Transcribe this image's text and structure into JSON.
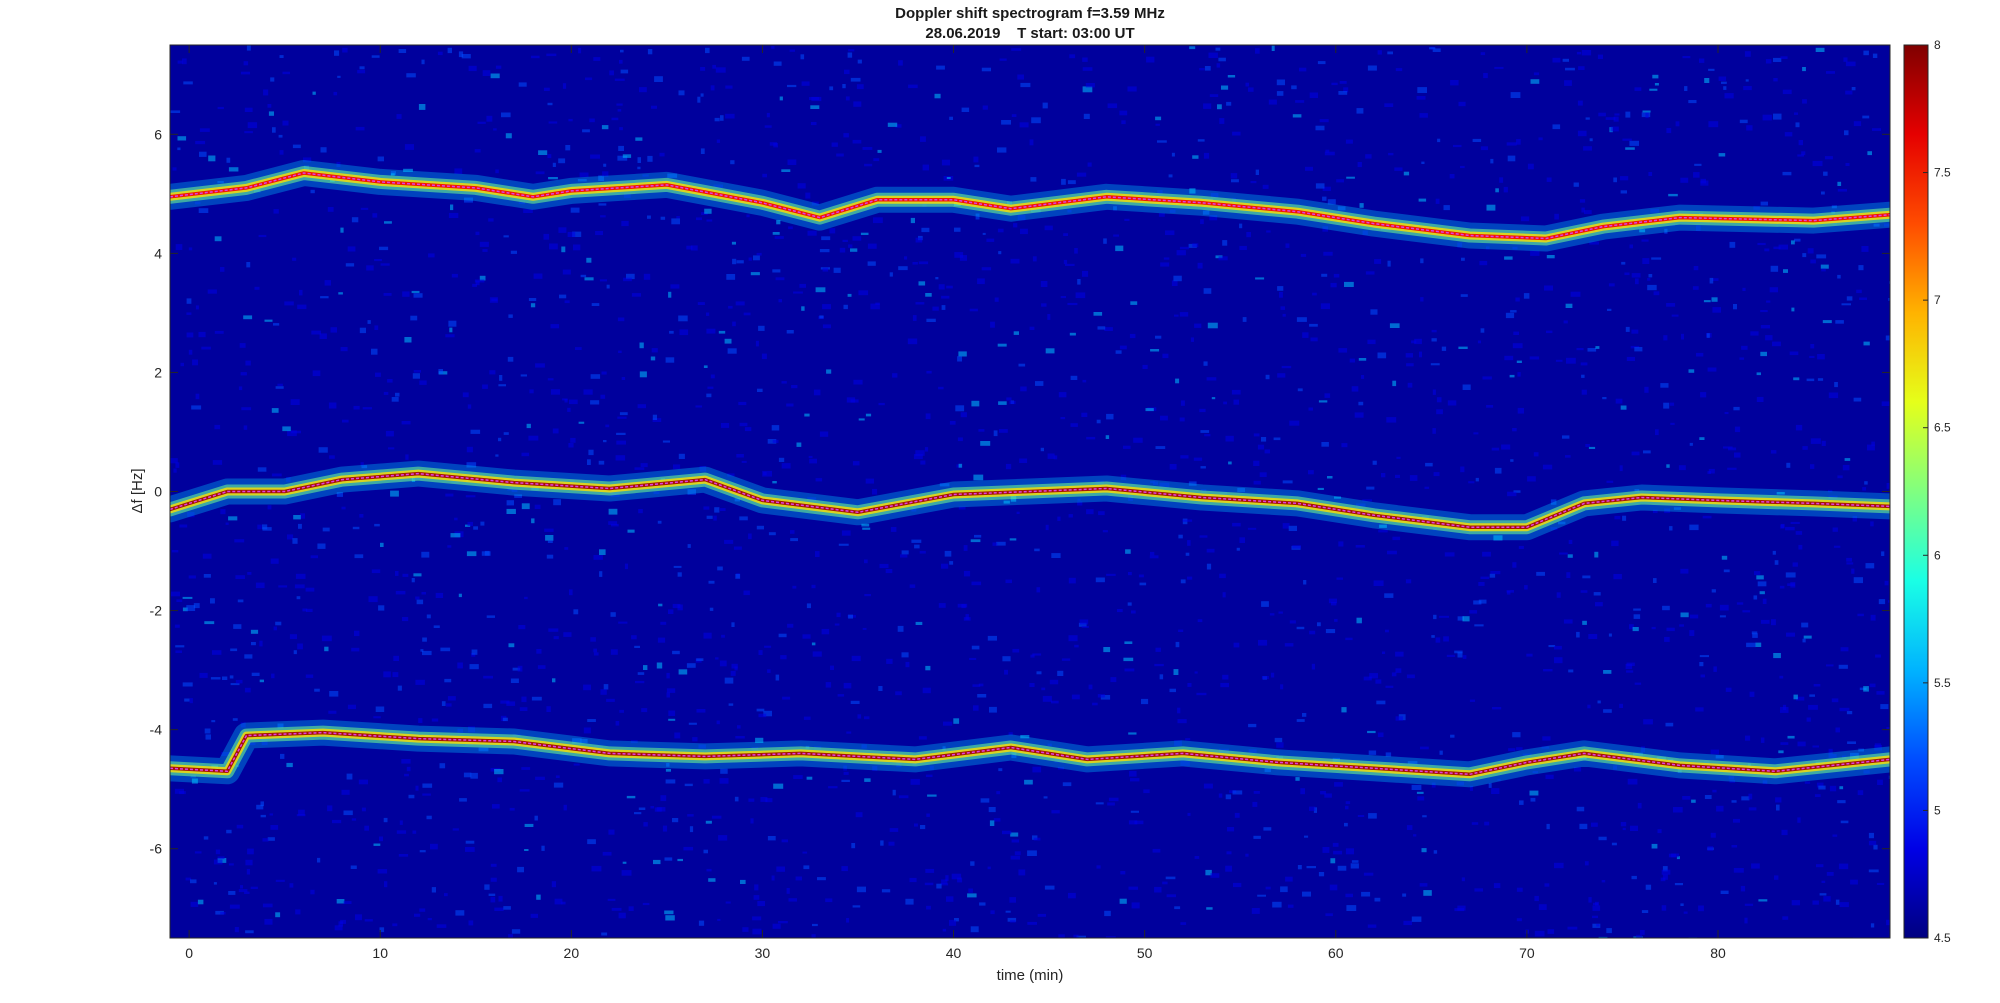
{
  "chart_data": {
    "type": "heatmap",
    "title": "Doppler shift spectrogram f=3.59 MHz",
    "subtitle": "28.06.2019    T start: 03:00 UT",
    "xlabel": "time (min)",
    "ylabel": "Δf [Hz]",
    "xlim": [
      -1,
      89
    ],
    "ylim": [
      -7.5,
      7.5
    ],
    "x_ticks": [
      0,
      10,
      20,
      30,
      40,
      50,
      60,
      70,
      80
    ],
    "y_ticks": [
      -6,
      -4,
      -2,
      0,
      2,
      4,
      6
    ],
    "colormap": "jet",
    "colorbar": {
      "range": [
        4.5,
        8
      ],
      "ticks": [
        4.5,
        5,
        5.5,
        6,
        6.5,
        7,
        7.5,
        8
      ],
      "position": "right"
    },
    "background_level": 4.6,
    "traces": [
      {
        "name": "",
        "time": [
          -1,
          3,
          6,
          10,
          15,
          18,
          20,
          25,
          30,
          33,
          36,
          40,
          43,
          48,
          53,
          58,
          62,
          67,
          71,
          74,
          78,
          85,
          89
        ],
        "doppler_hz": [
          4.95,
          5.1,
          5.35,
          5.2,
          5.1,
          4.95,
          5.05,
          5.15,
          4.85,
          4.6,
          4.9,
          4.9,
          4.75,
          4.95,
          4.85,
          4.7,
          4.5,
          4.3,
          4.25,
          4.45,
          4.6,
          4.55,
          4.65
        ],
        "intensity_peak": 7.6
      },
      {
        "name": "",
        "time": [
          -1,
          2,
          5,
          8,
          12,
          17,
          22,
          27,
          30,
          35,
          40,
          44,
          48,
          53,
          58,
          62,
          67,
          70,
          73,
          76,
          80,
          85,
          89
        ],
        "doppler_hz": [
          -0.3,
          0.0,
          0.0,
          0.2,
          0.3,
          0.15,
          0.05,
          0.2,
          -0.15,
          -0.35,
          -0.05,
          0.0,
          0.05,
          -0.1,
          -0.2,
          -0.4,
          -0.6,
          -0.6,
          -0.2,
          -0.1,
          -0.15,
          -0.2,
          -0.25
        ],
        "intensity_peak": 7.9
      },
      {
        "name": "",
        "time": [
          -1,
          2,
          3,
          7,
          12,
          17,
          22,
          27,
          32,
          38,
          43,
          47,
          52,
          57,
          62,
          67,
          70,
          73,
          78,
          83,
          89
        ],
        "doppler_hz": [
          -4.65,
          -4.7,
          -4.1,
          -4.05,
          -4.15,
          -4.2,
          -4.4,
          -4.45,
          -4.4,
          -4.5,
          -4.3,
          -4.5,
          -4.4,
          -4.55,
          -4.65,
          -4.75,
          -4.55,
          -4.4,
          -4.6,
          -4.7,
          -4.5
        ],
        "intensity_peak": 7.9
      }
    ]
  }
}
